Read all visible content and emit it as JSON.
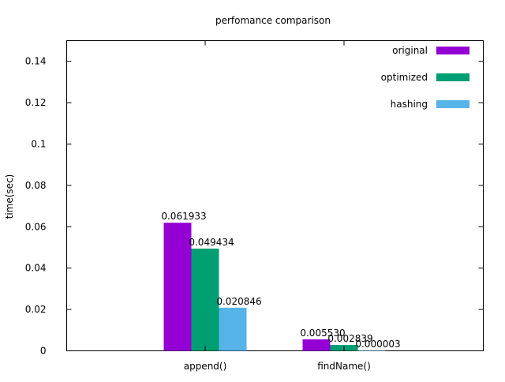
{
  "chart_data": {
    "type": "bar",
    "title": "perfomance comparison",
    "xlabel": "",
    "ylabel": "time(sec)",
    "ylim": [
      0,
      0.15
    ],
    "yticks": [
      "0",
      "0.02",
      "0.04",
      "0.06",
      "0.08",
      "0.1",
      "0.12",
      "0.14"
    ],
    "ytick_values": [
      0,
      0.02,
      0.04,
      0.06,
      0.08,
      0.1,
      0.12,
      0.14
    ],
    "grid": false,
    "legend_position": "top-right",
    "categories": [
      "append()",
      "findName()"
    ],
    "series": [
      {
        "name": "original",
        "color": "#9400d3",
        "values": [
          0.061933,
          0.00553
        ],
        "labels": [
          "0.061933",
          "0.005530"
        ]
      },
      {
        "name": "optimized",
        "color": "#009e73",
        "values": [
          0.049434,
          0.002839
        ],
        "labels": [
          "0.049434",
          "0.002839"
        ]
      },
      {
        "name": "hashing",
        "color": "#56b4e9",
        "values": [
          0.020846,
          3e-06
        ],
        "labels": [
          "0.020846",
          "0.000003"
        ]
      }
    ]
  }
}
